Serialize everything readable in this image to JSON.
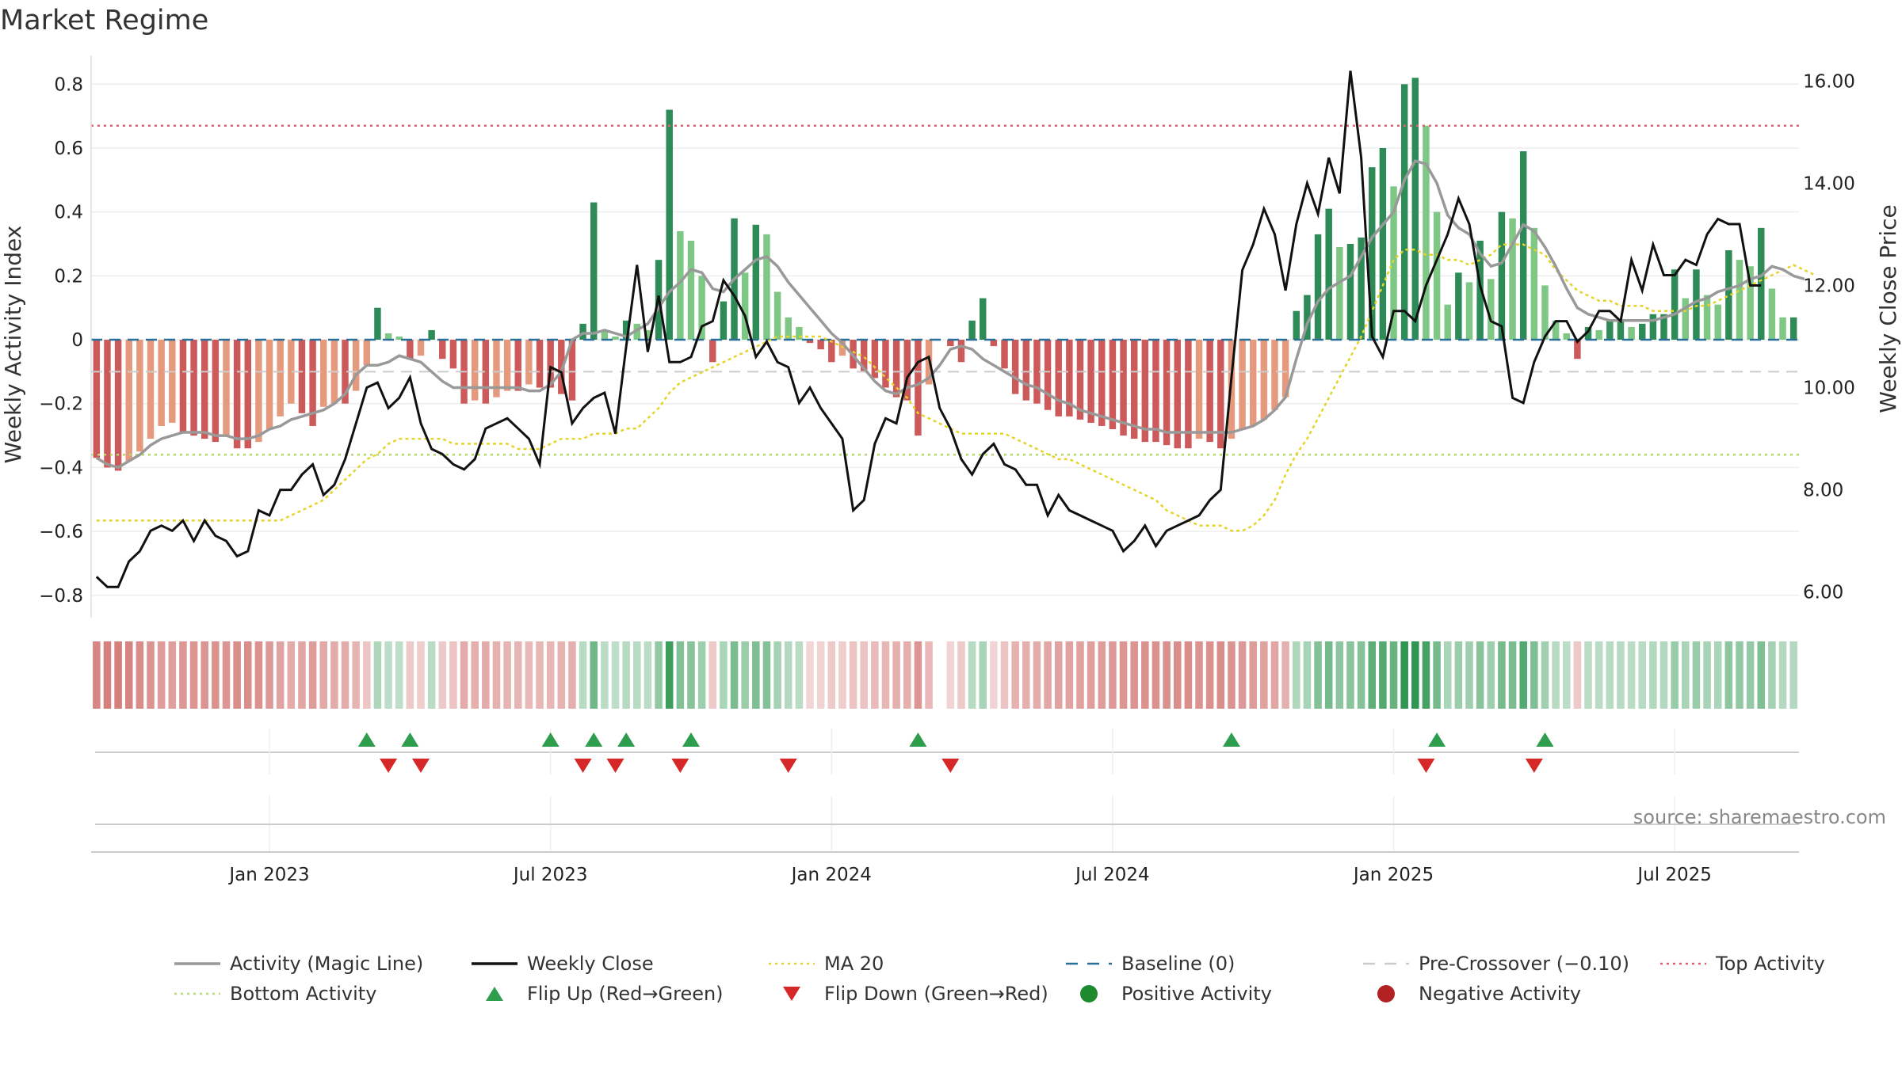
{
  "title": "Market Regime",
  "source": "source: sharemaestro.com",
  "chart_data": {
    "type": "bar",
    "title": "Market Regime",
    "ylabel_left": "Weekly Activity Index",
    "ylabel_right": "Weekly Close Price",
    "ylim_left": [
      -0.87,
      0.89
    ],
    "ylim_right": [
      5.5,
      16.5
    ],
    "yticks_left": [
      {
        "v": 0.8,
        "label": "0.8"
      },
      {
        "v": 0.6,
        "label": "0.6"
      },
      {
        "v": 0.4,
        "label": "0.4"
      },
      {
        "v": 0.2,
        "label": "0.2"
      },
      {
        "v": 0,
        "label": "0"
      },
      {
        "v": -0.2,
        "label": "−0.2"
      },
      {
        "v": -0.4,
        "label": "−0.4"
      },
      {
        "v": -0.6,
        "label": "−0.6"
      },
      {
        "v": -0.8,
        "label": "−0.8"
      }
    ],
    "yticks_right": [
      {
        "v": 16,
        "label": "16.00"
      },
      {
        "v": 14,
        "label": "14.00"
      },
      {
        "v": 12,
        "label": "12.00"
      },
      {
        "v": 10,
        "label": "10.00"
      },
      {
        "v": 8,
        "label": "8.00"
      },
      {
        "v": 6,
        "label": "6.00"
      }
    ],
    "xticks": [
      {
        "week": 16,
        "label": "Jan 2023"
      },
      {
        "week": 42,
        "label": "Jul 2023"
      },
      {
        "week": 68,
        "label": "Jan 2024"
      },
      {
        "week": 94,
        "label": "Jul 2024"
      },
      {
        "week": 120,
        "label": "Jan 2025"
      },
      {
        "week": 146,
        "label": "Jul 2025"
      }
    ],
    "x_start": "2022-09-05",
    "weeks": 158,
    "reference_lines": {
      "baseline": 0,
      "pre_crossover": -0.1,
      "top_activity": 0.67,
      "bottom_activity": -0.36
    },
    "activity": [
      -0.37,
      -0.4,
      -0.41,
      -0.38,
      -0.35,
      -0.31,
      -0.27,
      -0.26,
      -0.29,
      -0.3,
      -0.31,
      -0.32,
      -0.3,
      -0.34,
      -0.34,
      -0.32,
      -0.28,
      -0.24,
      -0.2,
      -0.23,
      -0.27,
      -0.21,
      -0.2,
      -0.2,
      -0.16,
      -0.08,
      0.1,
      0.02,
      0.01,
      -0.06,
      -0.05,
      0.03,
      -0.06,
      -0.09,
      -0.2,
      -0.19,
      -0.2,
      -0.18,
      -0.16,
      -0.16,
      -0.14,
      -0.15,
      -0.15,
      -0.17,
      -0.19,
      0.05,
      0.43,
      0.03,
      0.01,
      0.06,
      0.05,
      0.03,
      0.25,
      0.72,
      0.34,
      0.31,
      0.2,
      -0.07,
      0.12,
      0.38,
      0.21,
      0.36,
      0.33,
      0.15,
      0.07,
      0.04,
      -0.01,
      -0.03,
      -0.07,
      -0.05,
      -0.09,
      -0.1,
      -0.12,
      -0.15,
      -0.18,
      -0.19,
      -0.3,
      -0.14,
      null,
      -0.02,
      -0.07,
      0.06,
      0.13,
      -0.02,
      -0.09,
      -0.17,
      -0.19,
      -0.2,
      -0.22,
      -0.24,
      -0.24,
      -0.25,
      -0.26,
      -0.27,
      -0.28,
      -0.3,
      -0.31,
      -0.32,
      -0.32,
      -0.33,
      -0.34,
      -0.34,
      -0.31,
      -0.32,
      -0.34,
      -0.31,
      -0.28,
      -0.27,
      -0.25,
      -0.22,
      -0.18,
      0.09,
      0.14,
      0.33,
      0.41,
      0.29,
      0.3,
      0.32,
      0.54,
      0.6,
      0.48,
      0.8,
      0.82,
      0.67,
      0.4,
      0.11,
      0.21,
      0.18,
      0.31,
      0.19,
      0.4,
      0.38,
      0.59,
      0.35,
      0.17,
      0.06,
      0.02,
      -0.06,
      0.04,
      0.03,
      0.06,
      0.06,
      0.04,
      0.05,
      0.08,
      0.08,
      0.22,
      0.13,
      0.22,
      0.14,
      0.11,
      0.28,
      0.25,
      0.23,
      0.35,
      0.16,
      0.07,
      0.07
    ],
    "magic_line": [
      -0.37,
      -0.39,
      -0.4,
      -0.38,
      -0.36,
      -0.33,
      -0.31,
      -0.3,
      -0.29,
      -0.29,
      -0.29,
      -0.3,
      -0.3,
      -0.31,
      -0.31,
      -0.3,
      -0.28,
      -0.27,
      -0.25,
      -0.24,
      -0.23,
      -0.22,
      -0.2,
      -0.17,
      -0.11,
      -0.08,
      -0.08,
      -0.07,
      -0.05,
      -0.06,
      -0.07,
      -0.1,
      -0.13,
      -0.15,
      -0.15,
      -0.15,
      -0.15,
      -0.15,
      -0.15,
      -0.15,
      -0.16,
      -0.16,
      -0.14,
      -0.1,
      0.0,
      0.02,
      0.02,
      0.03,
      0.02,
      0.01,
      0.03,
      0.05,
      0.1,
      0.15,
      0.18,
      0.22,
      0.21,
      0.16,
      0.15,
      0.19,
      0.22,
      0.25,
      0.26,
      0.23,
      0.18,
      0.14,
      0.1,
      0.06,
      0.02,
      -0.01,
      -0.05,
      -0.09,
      -0.13,
      -0.16,
      -0.17,
      -0.15,
      -0.14,
      -0.12,
      -0.08,
      -0.03,
      -0.02,
      -0.03,
      -0.06,
      -0.08,
      -0.1,
      -0.12,
      -0.14,
      -0.15,
      -0.17,
      -0.19,
      -0.2,
      -0.22,
      -0.23,
      -0.24,
      -0.25,
      -0.26,
      -0.27,
      -0.28,
      -0.28,
      -0.29,
      -0.29,
      -0.29,
      -0.29,
      -0.29,
      -0.29,
      -0.29,
      -0.28,
      -0.27,
      -0.25,
      -0.22,
      -0.18,
      -0.06,
      0.05,
      0.12,
      0.16,
      0.18,
      0.2,
      0.26,
      0.32,
      0.36,
      0.4,
      0.5,
      0.56,
      0.55,
      0.49,
      0.39,
      0.35,
      0.33,
      0.27,
      0.23,
      0.24,
      0.3,
      0.36,
      0.34,
      0.29,
      0.23,
      0.16,
      0.1,
      0.08,
      0.07,
      0.06,
      0.06,
      0.06,
      0.06,
      0.06,
      0.07,
      0.08,
      0.1,
      0.12,
      0.13,
      0.15,
      0.16,
      0.17,
      0.19,
      0.2,
      0.23,
      0.22,
      0.2,
      0.19
    ],
    "ma20": [
      7.4,
      7.4,
      7.4,
      7.4,
      7.4,
      7.4,
      7.4,
      7.4,
      7.4,
      7.4,
      7.4,
      7.4,
      7.4,
      7.4,
      7.4,
      7.4,
      7.4,
      7.4,
      7.5,
      7.6,
      7.7,
      7.8,
      8.0,
      8.2,
      8.4,
      8.6,
      8.7,
      8.9,
      9.0,
      9.0,
      9.0,
      9.0,
      9.0,
      8.9,
      8.9,
      8.9,
      8.9,
      8.9,
      8.9,
      8.8,
      8.8,
      8.8,
      8.9,
      9.0,
      9.0,
      9.0,
      9.1,
      9.1,
      9.1,
      9.2,
      9.2,
      9.4,
      9.6,
      9.9,
      10.1,
      10.2,
      10.3,
      10.4,
      10.5,
      10.6,
      10.7,
      10.8,
      10.9,
      11.0,
      11.0,
      11.0,
      11.0,
      11.0,
      10.9,
      10.8,
      10.7,
      10.6,
      10.4,
      10.2,
      10.0,
      9.8,
      9.5,
      9.4,
      9.3,
      9.2,
      9.1,
      9.1,
      9.1,
      9.1,
      9.1,
      9.0,
      8.9,
      8.8,
      8.7,
      8.6,
      8.6,
      8.5,
      8.4,
      8.3,
      8.2,
      8.1,
      8.0,
      7.9,
      7.8,
      7.6,
      7.5,
      7.4,
      7.3,
      7.3,
      7.3,
      7.2,
      7.2,
      7.3,
      7.5,
      7.8,
      8.3,
      8.7,
      9.0,
      9.4,
      9.8,
      10.2,
      10.6,
      11.0,
      11.5,
      12.0,
      12.5,
      12.7,
      12.7,
      12.6,
      12.6,
      12.5,
      12.5,
      12.4,
      12.5,
      12.6,
      12.8,
      12.8,
      12.8,
      12.7,
      12.6,
      12.3,
      12.1,
      11.9,
      11.8,
      11.7,
      11.7,
      11.6,
      11.6,
      11.6,
      11.5,
      11.5,
      11.5,
      11.5,
      11.6,
      11.6,
      11.7,
      11.8,
      11.9,
      12.0,
      12.1,
      12.2,
      12.3,
      12.4,
      12.3,
      12.2
    ],
    "weekly_close": [
      6.3,
      6.1,
      6.1,
      6.6,
      6.8,
      7.2,
      7.3,
      7.2,
      7.4,
      7.0,
      7.4,
      7.1,
      7.0,
      6.7,
      6.8,
      7.6,
      7.5,
      8.0,
      8.0,
      8.3,
      8.5,
      7.9,
      8.1,
      8.6,
      9.3,
      10.0,
      10.1,
      9.6,
      9.8,
      10.2,
      9.3,
      8.8,
      8.7,
      8.5,
      8.4,
      8.6,
      9.2,
      9.3,
      9.4,
      9.2,
      9.0,
      8.5,
      10.4,
      10.3,
      9.3,
      9.6,
      9.8,
      9.9,
      9.1,
      10.8,
      12.4,
      10.7,
      11.8,
      10.5,
      10.5,
      10.6,
      11.2,
      11.3,
      12.1,
      11.8,
      11.4,
      10.6,
      10.9,
      10.5,
      10.4,
      9.7,
      10.0,
      9.6,
      9.3,
      9.0,
      7.6,
      7.8,
      8.9,
      9.4,
      9.3,
      10.2,
      10.5,
      10.6,
      9.6,
      9.2,
      8.6,
      8.3,
      8.7,
      8.9,
      8.5,
      8.4,
      8.1,
      8.1,
      7.5,
      7.9,
      7.6,
      7.5,
      7.4,
      7.3,
      7.2,
      6.8,
      7.0,
      7.3,
      6.9,
      7.2,
      7.3,
      7.4,
      7.5,
      7.8,
      8.0,
      10.2,
      12.3,
      12.8,
      13.5,
      13.0,
      11.9,
      13.2,
      14.0,
      13.4,
      14.5,
      13.8,
      16.2,
      14.5,
      11.0,
      10.6,
      11.5,
      11.5,
      11.3,
      12.0,
      12.5,
      13.0,
      13.7,
      13.2,
      12.0,
      11.3,
      11.2,
      9.8,
      9.7,
      10.5,
      11.0,
      11.3,
      11.3,
      10.9,
      11.1,
      11.5,
      11.5,
      11.3,
      12.5,
      11.9,
      12.8,
      12.2,
      12.2,
      12.5,
      12.4,
      13.0,
      13.3,
      13.2,
      13.2,
      12.0,
      12.0
    ],
    "flip_up_weeks": [
      25,
      29,
      42,
      46,
      49,
      55,
      76,
      105,
      124,
      134
    ],
    "flip_down_weeks": [
      27,
      30,
      45,
      48,
      54,
      64,
      79,
      123,
      133
    ],
    "legend": [
      {
        "label": "Activity (Magic Line)",
        "symbol": "line",
        "color": "#999999"
      },
      {
        "label": "Weekly Close",
        "symbol": "line",
        "color": "#111111"
      },
      {
        "label": "MA 20",
        "symbol": "dotted",
        "color": "#e6d32a"
      },
      {
        "label": "Baseline (0)",
        "symbol": "dashed",
        "color": "#2a6f97"
      },
      {
        "label": "Pre-Crossover (−0.10)",
        "symbol": "dashed",
        "color": "#cccccc"
      },
      {
        "label": "Top Activity",
        "symbol": "dotted",
        "color": "#e06070"
      },
      {
        "label": "Bottom Activity",
        "symbol": "dotted",
        "color": "#b5d96a"
      },
      {
        "label": "Flip Up (Red→Green)",
        "symbol": "triangle-up",
        "color": "#2e9e4e"
      },
      {
        "label": "Flip Down (Green→Red)",
        "symbol": "triangle-down",
        "color": "#d62828"
      },
      {
        "label": "Positive Activity",
        "symbol": "circle",
        "color": "#1e8a2e"
      },
      {
        "label": "Negative Activity",
        "symbol": "circle",
        "color": "#b22222"
      }
    ]
  }
}
